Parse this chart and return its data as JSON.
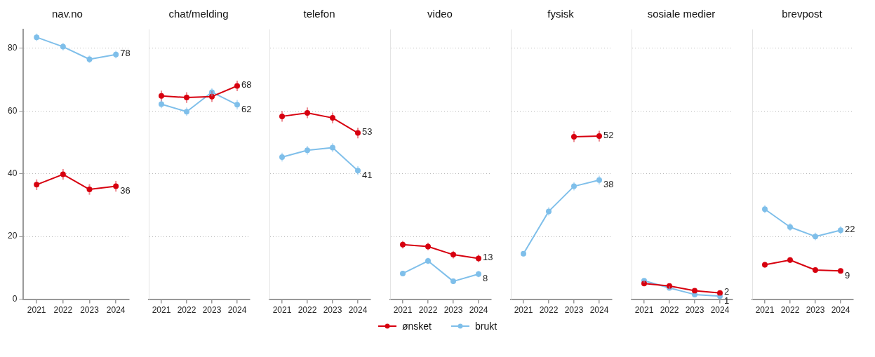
{
  "chart_data": [
    {
      "type": "line",
      "title": "nav.no",
      "categories": [
        "2021",
        "2022",
        "2023",
        "2024"
      ],
      "ylim": [
        0,
        86
      ],
      "yticks": [
        0,
        20,
        40,
        60,
        80
      ],
      "grid": "y",
      "marker": "circle",
      "legend": "bottom",
      "series": [
        {
          "name": "ønsket",
          "color": "#d7000f",
          "values": [
            36.5,
            39.8,
            35,
            36
          ],
          "errors": [
            1.7,
            1.7,
            1.7,
            1.7
          ],
          "value_labels": [
            null,
            null,
            null,
            "36"
          ]
        },
        {
          "name": "brukt",
          "color": "#7fbfea",
          "values": [
            83.5,
            80.5,
            76.5,
            78
          ],
          "errors": [
            1.2,
            1.2,
            1.2,
            1.2
          ],
          "value_labels": [
            null,
            null,
            null,
            "78"
          ]
        }
      ]
    },
    {
      "type": "line",
      "title": "chat/melding",
      "categories": [
        "2021",
        "2022",
        "2023",
        "2024"
      ],
      "ylim": [
        0,
        86
      ],
      "yticks": [
        0,
        20,
        40,
        60,
        80
      ],
      "grid": "y",
      "marker": "circle",
      "tick_labels": "x",
      "series": [
        {
          "color": "#d7000f",
          "values": [
            64.8,
            64.3,
            64.6,
            68
          ],
          "errors": [
            1.7,
            1.7,
            1.7,
            1.7
          ],
          "value_labels": [
            null,
            null,
            null,
            "68"
          ]
        },
        {
          "color": "#7fbfea",
          "values": [
            62.2,
            59.8,
            66,
            62
          ],
          "errors": [
            1.3,
            1.3,
            1.3,
            1.5
          ],
          "value_labels": [
            null,
            null,
            null,
            "62"
          ]
        }
      ]
    },
    {
      "type": "line",
      "title": "telefon",
      "categories": [
        "2021",
        "2022",
        "2023",
        "2024"
      ],
      "ylim": [
        0,
        86
      ],
      "yticks": [
        0,
        20,
        40,
        60,
        80
      ],
      "grid": "y",
      "marker": "circle",
      "tick_labels": "x",
      "series": [
        {
          "color": "#d7000f",
          "values": [
            58.3,
            59.4,
            57.8,
            53
          ],
          "errors": [
            1.7,
            1.7,
            1.7,
            1.7
          ],
          "value_labels": [
            null,
            null,
            null,
            "53"
          ]
        },
        {
          "color": "#7fbfea",
          "values": [
            45.3,
            47.5,
            48.3,
            41
          ],
          "errors": [
            1.4,
            1.4,
            1.4,
            1.4
          ],
          "value_labels": [
            null,
            null,
            null,
            "41"
          ]
        }
      ]
    },
    {
      "type": "line",
      "title": "video",
      "categories": [
        "2021",
        "2022",
        "2023",
        "2024"
      ],
      "ylim": [
        0,
        86
      ],
      "yticks": [
        0,
        20,
        40,
        60,
        80
      ],
      "grid": "y",
      "marker": "circle",
      "tick_labels": "x",
      "series": [
        {
          "color": "#d7000f",
          "values": [
            17.4,
            16.8,
            14.2,
            13
          ],
          "errors": [
            1.2,
            1.2,
            1.2,
            1.2
          ],
          "value_labels": [
            null,
            null,
            null,
            "13"
          ]
        },
        {
          "color": "#7fbfea",
          "values": [
            8.2,
            12.2,
            5.7,
            8
          ],
          "errors": [
            0.8,
            1,
            0.8,
            1
          ],
          "value_labels": [
            null,
            null,
            null,
            "8"
          ]
        }
      ]
    },
    {
      "type": "line",
      "title": "fysisk",
      "categories": [
        "2021",
        "2022",
        "2023",
        "2024"
      ],
      "ylim": [
        0,
        86
      ],
      "yticks": [
        0,
        20,
        40,
        60,
        80
      ],
      "grid": "y",
      "marker": "circle",
      "tick_labels": "x",
      "series": [
        {
          "color": "#d7000f",
          "values": [
            null,
            null,
            51.8,
            52
          ],
          "errors": [
            null,
            null,
            1.7,
            1.7
          ],
          "value_labels": [
            null,
            null,
            null,
            "52"
          ]
        },
        {
          "color": "#7fbfea",
          "values": [
            14.5,
            28,
            36,
            38
          ],
          "errors": [
            0.8,
            1.3,
            1.3,
            1.4
          ],
          "value_labels": [
            null,
            null,
            null,
            "38"
          ]
        }
      ]
    },
    {
      "type": "line",
      "title": "sosiale medier",
      "categories": [
        "2021",
        "2022",
        "2023",
        "2024"
      ],
      "ylim": [
        0,
        86
      ],
      "yticks": [
        0,
        20,
        40,
        60,
        80
      ],
      "grid": "y",
      "marker": "circle",
      "tick_labels": "x",
      "series": [
        {
          "color": "#d7000f",
          "values": [
            5,
            4.2,
            2.7,
            2
          ],
          "errors": [
            0.6,
            0.6,
            0.5,
            0.5
          ],
          "value_labels": [
            null,
            null,
            null,
            "2"
          ]
        },
        {
          "color": "#7fbfea",
          "values": [
            5.9,
            3.6,
            1.5,
            1
          ],
          "errors": [
            0.6,
            0.5,
            0.4,
            0.4
          ],
          "value_labels": [
            null,
            null,
            null,
            "1"
          ]
        }
      ]
    },
    {
      "type": "line",
      "title": "brevpost",
      "categories": [
        "2021",
        "2022",
        "2023",
        "2024"
      ],
      "ylim": [
        0,
        86
      ],
      "yticks": [
        0,
        20,
        40,
        60,
        80
      ],
      "grid": "y",
      "marker": "circle",
      "tick_labels": "x",
      "series": [
        {
          "color": "#d7000f",
          "values": [
            11,
            12.5,
            9.3,
            9
          ],
          "errors": [
            0.9,
            0.9,
            0.8,
            0.8
          ],
          "value_labels": [
            null,
            null,
            null,
            "9"
          ]
        },
        {
          "color": "#7fbfea",
          "values": [
            28.7,
            23,
            20,
            22
          ],
          "errors": [
            1.3,
            1.2,
            1.2,
            1.3
          ],
          "value_labels": [
            null,
            null,
            null,
            "22"
          ]
        }
      ]
    }
  ]
}
